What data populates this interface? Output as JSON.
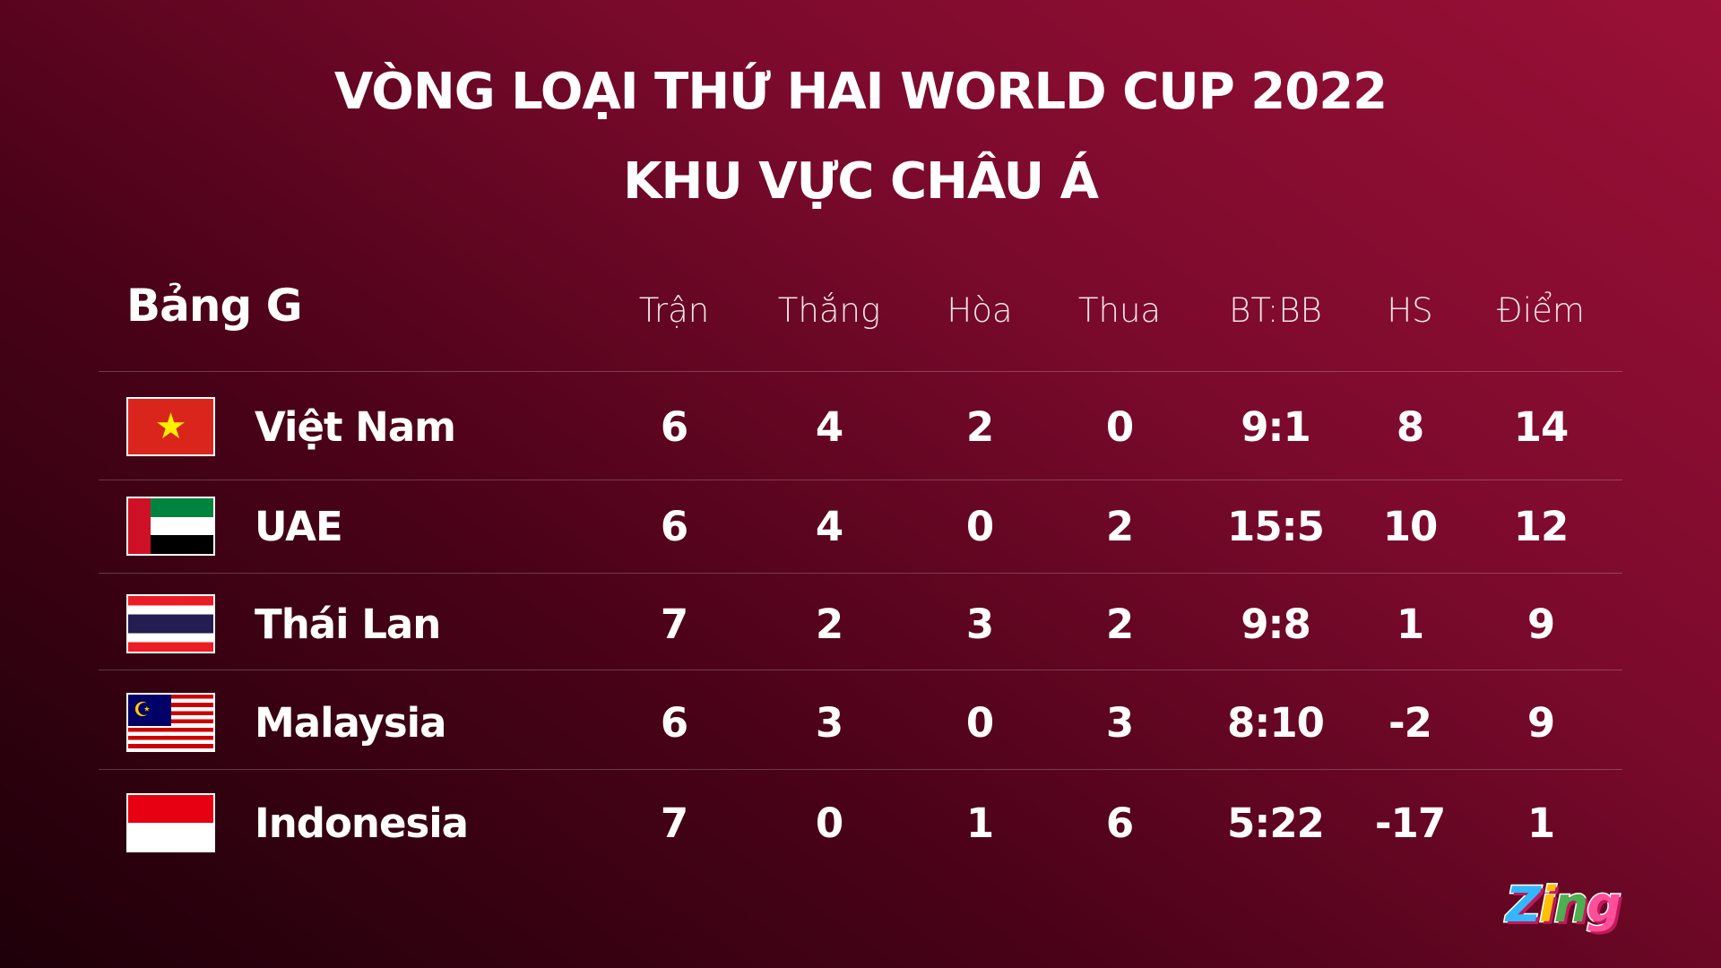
{
  "title": {
    "line1": "VÒNG LOẠI THỨ HAI WORLD CUP 2022",
    "line2": "KHU VỰC CHÂU Á"
  },
  "group": "Bảng G",
  "headers": [
    "Trận",
    "Thắng",
    "Hòa",
    "Thua",
    "BT:BB",
    "HS",
    "Điểm"
  ],
  "rows": [
    {
      "team": "Việt Nam",
      "flag": "vietnam-flag",
      "values": [
        "6",
        "4",
        "2",
        "0",
        "9:1",
        "8",
        "14"
      ]
    },
    {
      "team": "UAE",
      "flag": "uae-flag",
      "values": [
        "6",
        "4",
        "0",
        "2",
        "15:5",
        "10",
        "12"
      ]
    },
    {
      "team": "Thái Lan",
      "flag": "thailand-flag",
      "values": [
        "7",
        "2",
        "3",
        "2",
        "9:8",
        "1",
        "9"
      ]
    },
    {
      "team": "Malaysia",
      "flag": "malaysia-flag",
      "values": [
        "6",
        "3",
        "0",
        "3",
        "8:10",
        "-2",
        "9"
      ]
    },
    {
      "team": "Indonesia",
      "flag": "indonesia-flag",
      "values": [
        "7",
        "0",
        "1",
        "6",
        "5:22",
        "-17",
        "1"
      ]
    }
  ],
  "logo": {
    "z": "Z",
    "i": "i",
    "n": "n",
    "g": "g"
  }
}
